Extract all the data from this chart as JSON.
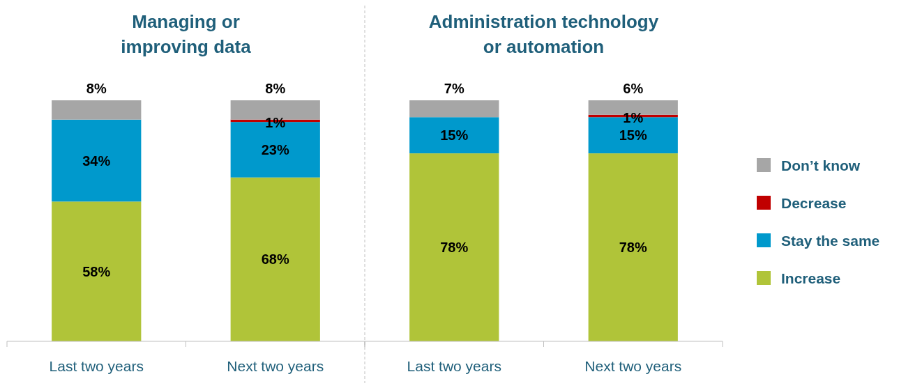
{
  "chart_data": [
    {
      "type": "bar",
      "title": "Managing or\nimproving data",
      "categories": [
        "Last two years",
        "Next two years"
      ],
      "stacked": true,
      "legend": false,
      "series": [
        {
          "color": "#b0c439",
          "values": [
            58,
            68
          ],
          "value_labels": [
            "58%",
            "68%"
          ]
        },
        {
          "color": "#0099cc",
          "values": [
            34,
            23
          ],
          "value_labels": [
            "34%",
            "23%"
          ]
        },
        {
          "color": "#c00000",
          "values": [
            null,
            1
          ],
          "value_labels": [
            null,
            "1%"
          ]
        },
        {
          "color": "#a6a6a6",
          "values": [
            8,
            8
          ],
          "value_labels": [
            "8%",
            "8%"
          ]
        }
      ]
    },
    {
      "type": "bar",
      "title": "Administration technology\nor automation",
      "categories": [
        "Last two years",
        "Next two years"
      ],
      "stacked": true,
      "legend": "right",
      "series": [
        {
          "name": "Increase",
          "color": "#b0c439",
          "values": [
            78,
            78
          ],
          "value_labels": [
            "78%",
            "78%"
          ]
        },
        {
          "name": "Stay the same",
          "color": "#0099cc",
          "values": [
            15,
            15
          ],
          "value_labels": [
            "15%",
            "15%"
          ]
        },
        {
          "name": "Decrease",
          "color": "#c00000",
          "values": [
            null,
            1
          ],
          "value_labels": [
            null,
            "1%"
          ]
        },
        {
          "name": "Don’t know",
          "color": "#a6a6a6",
          "values": [
            7,
            6
          ],
          "value_labels": [
            "7%",
            "6%"
          ]
        }
      ]
    }
  ]
}
